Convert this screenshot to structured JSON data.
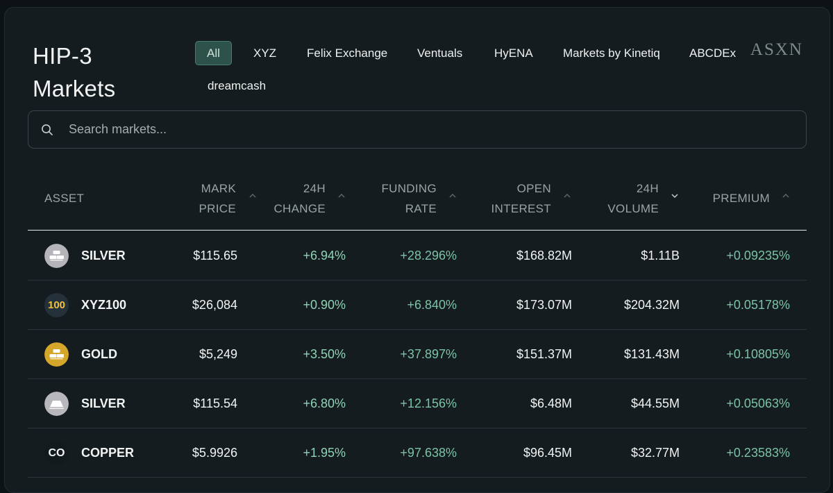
{
  "header": {
    "title_line1": "HIP-3",
    "title_line2": "Markets",
    "brand": "ASXN"
  },
  "tabs": [
    {
      "label": "All",
      "active": true
    },
    {
      "label": "XYZ"
    },
    {
      "label": "Felix Exchange"
    },
    {
      "label": "Ventuals"
    },
    {
      "label": "HyENA"
    },
    {
      "label": "Markets by Kinetiq"
    },
    {
      "label": "ABCDEx"
    },
    {
      "label": "dreamcash"
    }
  ],
  "search": {
    "placeholder": "Search markets..."
  },
  "columns": {
    "asset": "ASSET",
    "mark_price": [
      "MARK",
      "PRICE"
    ],
    "change_24h": [
      "24H",
      "CHANGE"
    ],
    "funding_rate": [
      "FUNDING",
      "RATE"
    ],
    "open_interest": [
      "OPEN",
      "INTEREST"
    ],
    "volume_24h": [
      "24H",
      "VOLUME"
    ],
    "premium": "PREMIUM"
  },
  "rows": [
    {
      "icon": "silver-bars-icon",
      "badge": "",
      "asset": "SILVER",
      "mark_price": "$115.65",
      "change_24h": "+6.94%",
      "funding_rate": "+28.296%",
      "open_interest": "$168.82M",
      "volume_24h": "$1.11B",
      "premium": "+0.09235%"
    },
    {
      "icon": "xyz100-icon",
      "badge": "100",
      "asset": "XYZ100",
      "mark_price": "$26,084",
      "change_24h": "+0.90%",
      "funding_rate": "+6.840%",
      "open_interest": "$173.07M",
      "volume_24h": "$204.32M",
      "premium": "+0.05178%"
    },
    {
      "icon": "gold-bars-icon",
      "badge": "",
      "asset": "GOLD",
      "mark_price": "$5,249",
      "change_24h": "+3.50%",
      "funding_rate": "+37.897%",
      "open_interest": "$151.37M",
      "volume_24h": "$131.43M",
      "premium": "+0.10805%"
    },
    {
      "icon": "silver-bar-icon",
      "badge": "",
      "asset": "SILVER",
      "mark_price": "$115.54",
      "change_24h": "+6.80%",
      "funding_rate": "+12.156%",
      "open_interest": "$6.48M",
      "volume_24h": "$44.55M",
      "premium": "+0.05063%"
    },
    {
      "icon": "copper-icon",
      "badge": "CO",
      "asset": "COPPER",
      "mark_price": "$5.9926",
      "change_24h": "+1.95%",
      "funding_rate": "+97.638%",
      "open_interest": "$96.45M",
      "volume_24h": "$32.77M",
      "premium": "+0.23583%"
    }
  ],
  "colors": {
    "background": "#141c1f",
    "accent_tab": "#2d524a",
    "positive": "#7bc3a6",
    "gold": "#d4a62a",
    "silver": "#b8b8bc"
  }
}
